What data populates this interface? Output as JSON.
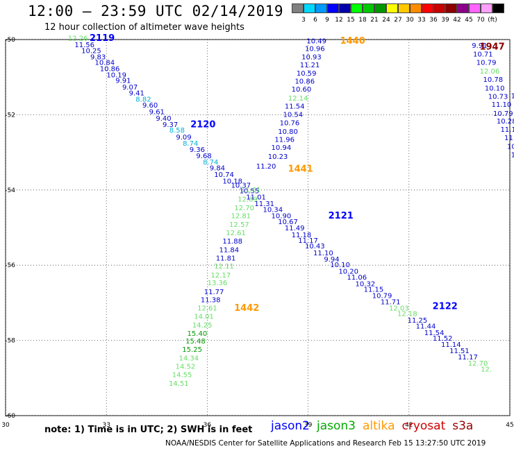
{
  "header": {
    "title": "12:00 – 23:59 UTC 02/14/2019",
    "subtitle": "12 hour collection of altimeter wave heights"
  },
  "colorbar": {
    "colors": [
      "#808080",
      "#00d8ff",
      "#0099ff",
      "#0000ff",
      "#0000aa",
      "#00ff00",
      "#00c800",
      "#009600",
      "#ffff00",
      "#ffc800",
      "#ff8c00",
      "#ff0000",
      "#c80000",
      "#8b0000",
      "#8b008b",
      "#ff64ff",
      "#ffa0ff",
      "#000000"
    ],
    "labels": [
      "3",
      "6",
      "9",
      "12",
      "15",
      "18",
      "21",
      "24",
      "27",
      "30",
      "33",
      "36",
      "39",
      "42",
      "45",
      "70",
      "(ft)"
    ]
  },
  "map": {
    "lon_ticks": [
      "30",
      "33",
      "36",
      "39",
      "42",
      "45"
    ],
    "lat_ticks": [
      "-50",
      "-52",
      "-54",
      "-56",
      "-58",
      "-60"
    ],
    "extent": {
      "lon": [
        30,
        45
      ],
      "lat": [
        -60,
        -50
      ]
    }
  },
  "tracks": [
    {
      "id": "2119",
      "mission": "jason2",
      "color": "#0000ff"
    },
    {
      "id": "2120",
      "mission": "jason2",
      "color": "#0000ff"
    },
    {
      "id": "2121",
      "mission": "jason2",
      "color": "#0000ff"
    },
    {
      "id": "2122",
      "mission": "jason2",
      "color": "#0000ff"
    },
    {
      "id": "1440",
      "mission": "altika",
      "color": "#ff9900"
    },
    {
      "id": "1441",
      "mission": "altika",
      "color": "#ff9900"
    },
    {
      "id": "1442",
      "mission": "altika",
      "color": "#ff9900"
    },
    {
      "id": "1947",
      "mission": "cryosat",
      "color": "#8b0000"
    }
  ],
  "track_labels": [
    {
      "id": "2119",
      "lon": 32.5,
      "lat": -49.97
    },
    {
      "id": "2120",
      "lon": 35.5,
      "lat": -52.27
    },
    {
      "id": "2121",
      "lon": 39.6,
      "lat": -54.7
    },
    {
      "id": "2122",
      "lon": 42.7,
      "lat": -57.1
    },
    {
      "id": "1440",
      "lon": 39.95,
      "lat": -50.05
    },
    {
      "id": "1441",
      "lon": 38.4,
      "lat": -53.45
    },
    {
      "id": "1442",
      "lon": 36.8,
      "lat": -57.15
    },
    {
      "id": "1947",
      "lon": 44.1,
      "lat": -50.2
    }
  ],
  "point_colors": {
    "dark": "#0000cc",
    "cyan": "#00b0d8",
    "lgreen": "#66dd66",
    "green": "#009900"
  },
  "points": [
    {
      "v": "12.26",
      "c": "lgreen",
      "lon": 32.15,
      "lat": -49.97
    },
    {
      "v": "11.56",
      "c": "dark",
      "lon": 32.35,
      "lat": -50.15
    },
    {
      "v": "10.25",
      "c": "dark",
      "lon": 32.55,
      "lat": -50.3
    },
    {
      "v": "9.83",
      "c": "dark",
      "lon": 32.75,
      "lat": -50.47
    },
    {
      "v": "10.84",
      "c": "dark",
      "lon": 32.95,
      "lat": -50.62
    },
    {
      "v": "10.86",
      "c": "dark",
      "lon": 33.1,
      "lat": -50.78
    },
    {
      "v": "10.19",
      "c": "dark",
      "lon": 33.3,
      "lat": -50.95
    },
    {
      "v": "9.91",
      "c": "dark",
      "lon": 33.5,
      "lat": -51.1
    },
    {
      "v": "9.07",
      "c": "dark",
      "lon": 33.7,
      "lat": -51.27
    },
    {
      "v": "9.41",
      "c": "dark",
      "lon": 33.9,
      "lat": -51.43
    },
    {
      "v": "8.82",
      "c": "cyan",
      "lon": 34.1,
      "lat": -51.6
    },
    {
      "v": "9.60",
      "c": "dark",
      "lon": 34.3,
      "lat": -51.75
    },
    {
      "v": "9.61",
      "c": "dark",
      "lon": 34.5,
      "lat": -51.93
    },
    {
      "v": "9.40",
      "c": "dark",
      "lon": 34.7,
      "lat": -52.1
    },
    {
      "v": "9.37",
      "c": "dark",
      "lon": 34.9,
      "lat": -52.27
    },
    {
      "v": "8.58",
      "c": "cyan",
      "lon": 35.1,
      "lat": -52.42
    },
    {
      "v": "9.09",
      "c": "dark",
      "lon": 35.3,
      "lat": -52.6
    },
    {
      "v": "8.74",
      "c": "cyan",
      "lon": 35.5,
      "lat": -52.77
    },
    {
      "v": "9.36",
      "c": "dark",
      "lon": 35.7,
      "lat": -52.93
    },
    {
      "v": "9.68",
      "c": "dark",
      "lon": 35.9,
      "lat": -53.1
    },
    {
      "v": "8.74",
      "c": "cyan",
      "lon": 36.1,
      "lat": -53.27
    },
    {
      "v": "9.84",
      "c": "dark",
      "lon": 36.3,
      "lat": -53.42
    },
    {
      "v": "10.74",
      "c": "dark",
      "lon": 36.5,
      "lat": -53.6
    },
    {
      "v": "10.18",
      "c": "dark",
      "lon": 36.75,
      "lat": -53.77
    },
    {
      "v": "10.37",
      "c": "dark",
      "lon": 37.0,
      "lat": -53.88
    },
    {
      "v": "10.55",
      "c": "dark",
      "lon": 37.25,
      "lat": -54.03
    },
    {
      "v": "11.01",
      "c": "dark",
      "lon": 37.45,
      "lat": -54.2
    },
    {
      "v": "11.31",
      "c": "dark",
      "lon": 37.7,
      "lat": -54.37
    },
    {
      "v": "10.34",
      "c": "dark",
      "lon": 37.95,
      "lat": -54.53
    },
    {
      "v": "10.90",
      "c": "dark",
      "lon": 38.2,
      "lat": -54.7
    },
    {
      "v": "10.67",
      "c": "dark",
      "lon": 38.4,
      "lat": -54.85
    },
    {
      "v": "11.49",
      "c": "dark",
      "lon": 38.6,
      "lat": -55.02
    },
    {
      "v": "11.18",
      "c": "dark",
      "lon": 38.8,
      "lat": -55.2
    },
    {
      "v": "11.17",
      "c": "dark",
      "lon": 39.0,
      "lat": -55.35
    },
    {
      "v": "10.43",
      "c": "dark",
      "lon": 39.2,
      "lat": -55.5
    },
    {
      "v": "11.10",
      "c": "dark",
      "lon": 39.45,
      "lat": -55.68
    },
    {
      "v": "9.94",
      "c": "dark",
      "lon": 39.7,
      "lat": -55.85
    },
    {
      "v": "10.10",
      "c": "dark",
      "lon": 39.95,
      "lat": -56.0
    },
    {
      "v": "10.20",
      "c": "dark",
      "lon": 40.2,
      "lat": -56.17
    },
    {
      "v": "11.06",
      "c": "dark",
      "lon": 40.45,
      "lat": -56.33
    },
    {
      "v": "10.32",
      "c": "dark",
      "lon": 40.7,
      "lat": -56.5
    },
    {
      "v": "11.15",
      "c": "dark",
      "lon": 40.95,
      "lat": -56.65
    },
    {
      "v": "10.79",
      "c": "dark",
      "lon": 41.2,
      "lat": -56.82
    },
    {
      "v": "11.71",
      "c": "dark",
      "lon": 41.45,
      "lat": -56.98
    },
    {
      "v": "12.03",
      "c": "lgreen",
      "lon": 41.7,
      "lat": -57.15
    },
    {
      "v": "12.18",
      "c": "lgreen",
      "lon": 41.95,
      "lat": -57.3
    },
    {
      "v": "11.25",
      "c": "dark",
      "lon": 42.25,
      "lat": -57.47
    },
    {
      "v": "11.44",
      "c": "dark",
      "lon": 42.5,
      "lat": -57.63
    },
    {
      "v": "11.54",
      "c": "dark",
      "lon": 42.75,
      "lat": -57.8
    },
    {
      "v": "11.52",
      "c": "dark",
      "lon": 43.0,
      "lat": -57.95
    },
    {
      "v": "11.14",
      "c": "dark",
      "lon": 43.25,
      "lat": -58.12
    },
    {
      "v": "11.51",
      "c": "dark",
      "lon": 43.5,
      "lat": -58.28
    },
    {
      "v": "11.17",
      "c": "dark",
      "lon": 43.75,
      "lat": -58.45
    },
    {
      "v": "12.70",
      "c": "lgreen",
      "lon": 44.05,
      "lat": -58.62
    },
    {
      "v": "12.",
      "c": "lgreen",
      "lon": 44.3,
      "lat": -58.77
    },
    {
      "v": "10.49",
      "c": "dark",
      "lon": 39.25,
      "lat": -50.05
    },
    {
      "v": "10.96",
      "c": "dark",
      "lon": 39.2,
      "lat": -50.25
    },
    {
      "v": "10.93",
      "c": "dark",
      "lon": 39.1,
      "lat": -50.47
    },
    {
      "v": "11.21",
      "c": "dark",
      "lon": 39.05,
      "lat": -50.68
    },
    {
      "v": "10.59",
      "c": "dark",
      "lon": 38.95,
      "lat": -50.9
    },
    {
      "v": "10.86",
      "c": "dark",
      "lon": 38.9,
      "lat": -51.12
    },
    {
      "v": "10.60",
      "c": "dark",
      "lon": 38.8,
      "lat": -51.33
    },
    {
      "v": "12.14",
      "c": "lgreen",
      "lon": 38.7,
      "lat": -51.57
    },
    {
      "v": "11.54",
      "c": "dark",
      "lon": 38.6,
      "lat": -51.78
    },
    {
      "v": "10.54",
      "c": "dark",
      "lon": 38.55,
      "lat": -52.0
    },
    {
      "v": "10.76",
      "c": "dark",
      "lon": 38.45,
      "lat": -52.22
    },
    {
      "v": "10.80",
      "c": "dark",
      "lon": 38.4,
      "lat": -52.45
    },
    {
      "v": "11.96",
      "c": "dark",
      "lon": 38.3,
      "lat": -52.67
    },
    {
      "v": "10.94",
      "c": "dark",
      "lon": 38.2,
      "lat": -52.88
    },
    {
      "v": "10.23",
      "c": "dark",
      "lon": 38.1,
      "lat": -53.12
    },
    {
      "v": "11.20",
      "c": "dark",
      "lon": 37.75,
      "lat": -53.38
    },
    {
      "v": "11.61",
      "c": "lgreen",
      "lon": 37.3,
      "lat": -54.0
    },
    {
      "v": "12.89",
      "c": "lgreen",
      "lon": 37.2,
      "lat": -54.25
    },
    {
      "v": "12.70",
      "c": "lgreen",
      "lon": 37.1,
      "lat": -54.48
    },
    {
      "v": "12.81",
      "c": "lgreen",
      "lon": 37.0,
      "lat": -54.7
    },
    {
      "v": "12.57",
      "c": "lgreen",
      "lon": 36.95,
      "lat": -54.93
    },
    {
      "v": "12.61",
      "c": "lgreen",
      "lon": 36.85,
      "lat": -55.15
    },
    {
      "v": "11.88",
      "c": "dark",
      "lon": 36.75,
      "lat": -55.37
    },
    {
      "v": "11.84",
      "c": "dark",
      "lon": 36.65,
      "lat": -55.6
    },
    {
      "v": "11.81",
      "c": "dark",
      "lon": 36.55,
      "lat": -55.82
    },
    {
      "v": "12.11",
      "c": "lgreen",
      "lon": 36.5,
      "lat": -56.03
    },
    {
      "v": "12.17",
      "c": "lgreen",
      "lon": 36.4,
      "lat": -56.27
    },
    {
      "v": "13.36",
      "c": "lgreen",
      "lon": 36.3,
      "lat": -56.48
    },
    {
      "v": "11.77",
      "c": "dark",
      "lon": 36.2,
      "lat": -56.72
    },
    {
      "v": "11.38",
      "c": "dark",
      "lon": 36.1,
      "lat": -56.93
    },
    {
      "v": "12.61",
      "c": "lgreen",
      "lon": 36.0,
      "lat": -57.15
    },
    {
      "v": "14.01",
      "c": "lgreen",
      "lon": 35.9,
      "lat": -57.37
    },
    {
      "v": "14.25",
      "c": "lgreen",
      "lon": 35.85,
      "lat": -57.6
    },
    {
      "v": "15.40",
      "c": "green",
      "lon": 35.7,
      "lat": -57.82
    },
    {
      "v": "15.48",
      "c": "green",
      "lon": 35.65,
      "lat": -58.03
    },
    {
      "v": "15.25",
      "c": "green",
      "lon": 35.55,
      "lat": -58.25
    },
    {
      "v": "14.34",
      "c": "lgreen",
      "lon": 35.45,
      "lat": -58.48
    },
    {
      "v": "14.52",
      "c": "lgreen",
      "lon": 35.35,
      "lat": -58.7
    },
    {
      "v": "14.55",
      "c": "lgreen",
      "lon": 35.25,
      "lat": -58.92
    },
    {
      "v": "14.51",
      "c": "lgreen",
      "lon": 35.15,
      "lat": -59.15
    },
    {
      "v": "9.91",
      "c": "dark",
      "lon": 44.1,
      "lat": -50.17
    },
    {
      "v": "10.71",
      "c": "dark",
      "lon": 44.2,
      "lat": -50.4
    },
    {
      "v": "10.79",
      "c": "dark",
      "lon": 44.3,
      "lat": -50.62
    },
    {
      "v": "12.06",
      "c": "lgreen",
      "lon": 44.4,
      "lat": -50.85
    },
    {
      "v": "10.78",
      "c": "dark",
      "lon": 44.5,
      "lat": -51.07
    },
    {
      "v": "10.10",
      "c": "dark",
      "lon": 44.55,
      "lat": -51.3
    },
    {
      "v": "10.73",
      "c": "dark",
      "lon": 44.65,
      "lat": -51.52
    },
    {
      "v": "11.10",
      "c": "dark",
      "lon": 44.75,
      "lat": -51.73
    },
    {
      "v": "10.79",
      "c": "dark",
      "lon": 44.8,
      "lat": -51.97
    },
    {
      "v": "10.28",
      "c": "dark",
      "lon": 44.9,
      "lat": -52.18
    },
    {
      "v": "11.1",
      "c": "dark",
      "lon": 44.95,
      "lat": -52.4
    },
    {
      "v": "11.",
      "c": "dark",
      "lon": 45.0,
      "lat": -52.62
    },
    {
      "v": "10",
      "c": "dark",
      "lon": 45.05,
      "lat": -52.85
    },
    {
      "v": "1",
      "c": "dark",
      "lon": 45.1,
      "lat": -53.07
    },
    {
      "v": "1",
      "c": "dark",
      "lon": 45.1,
      "lat": -51.5
    }
  ],
  "note": "note: 1) Time is in UTC; 2) SWH is in feet",
  "missions": [
    {
      "name": "jason2",
      "color": "#0000ff"
    },
    {
      "name": "jason3",
      "color": "#00aa00"
    },
    {
      "name": "altika",
      "color": "#ff9900"
    },
    {
      "name": "cryosat",
      "color": "#cc0000"
    },
    {
      "name": "s3a",
      "color": "#990000"
    }
  ],
  "footer": "NOAA/NESDIS Center for Satellite Applications and Research     Feb 15 13:27:50 UTC 2019"
}
